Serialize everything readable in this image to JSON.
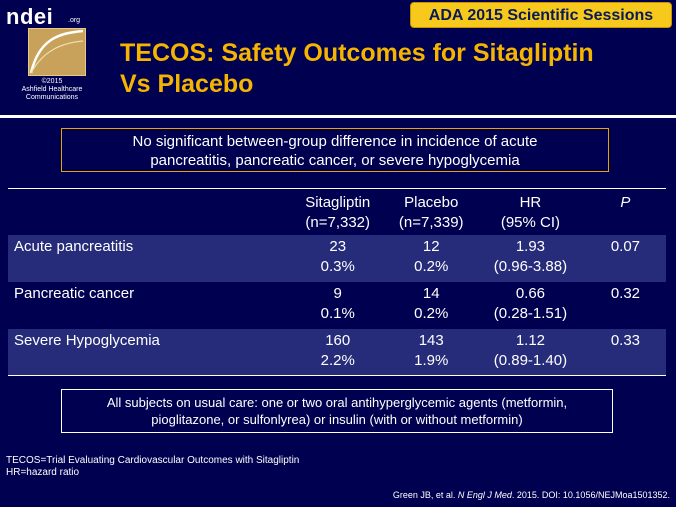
{
  "logo": {
    "word": "ndei",
    "org": ".org",
    "copyright": "©2015",
    "company_line1": "Ashfield Healthcare",
    "company_line2": "Communications"
  },
  "badge": "ADA 2015 Scientific Sessions",
  "title_line1": "TECOS: Safety Outcomes for Sitagliptin",
  "title_line2": "Vs Placebo",
  "top_note": {
    "line1": "No significant between-group difference in incidence of acute",
    "line2": "pancreatitis, pancreatic cancer, or severe hypoglycemia"
  },
  "table": {
    "headers": {
      "sitagliptin": [
        "Sitagliptin",
        "(n=7,332)"
      ],
      "placebo": [
        "Placebo",
        "(n=7,339)"
      ],
      "hr": [
        "HR",
        "(95% CI)"
      ],
      "p": "P"
    },
    "rows": [
      {
        "label": "Acute pancreatitis",
        "sita_n": "23",
        "sita_pct": "0.3%",
        "plac_n": "12",
        "plac_pct": "0.2%",
        "hr": "1.93",
        "ci": "(0.96-3.88)",
        "p": "0.07"
      },
      {
        "label": "Pancreatic cancer",
        "sita_n": "9",
        "sita_pct": "0.1%",
        "plac_n": "14",
        "plac_pct": "0.2%",
        "hr": "0.66",
        "ci": "(0.28-1.51)",
        "p": "0.32"
      },
      {
        "label": "Severe Hypoglycemia",
        "sita_n": "160",
        "sita_pct": "2.2%",
        "plac_n": "143",
        "plac_pct": "1.9%",
        "hr": "1.12",
        "ci": "(0.89-1.40)",
        "p": "0.33"
      }
    ]
  },
  "bottom_note": {
    "line1": "All subjects on usual care: one or two oral antihyperglycemic agents (metformin,",
    "line2": "pioglitazone, or sulfonlyrea) or insulin (with or without metformin)"
  },
  "footnotes": [
    "TECOS=Trial Evaluating Cardiovascular Outcomes with Sitagliptin",
    "HR=hazard ratio"
  ],
  "citation": {
    "authors": "Green JB, et al. ",
    "journal": "N Engl J Med",
    "rest": ". 2015. DOI: 10.1056/NEJMoa1501352."
  },
  "colors": {
    "background": "#000050",
    "title": "#f5b400",
    "badge": "#f7c91c",
    "row_shade": "#262c7a"
  }
}
